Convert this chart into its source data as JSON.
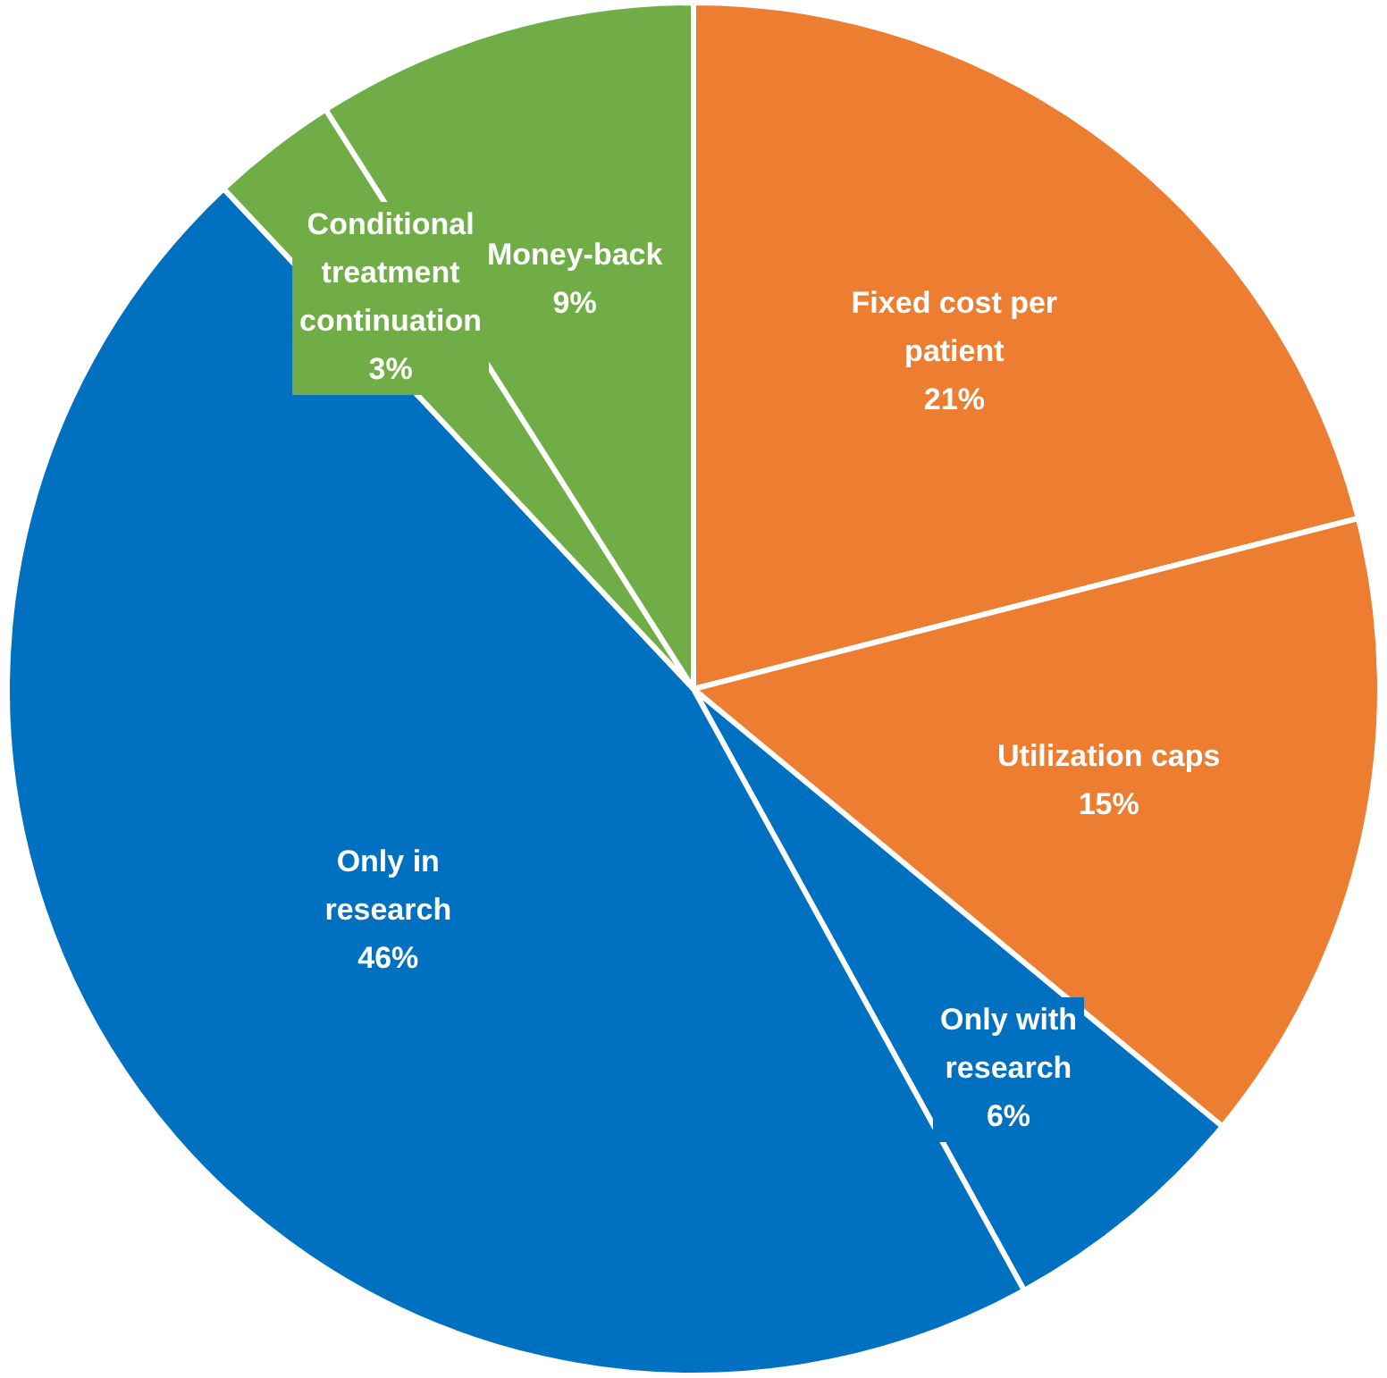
{
  "chart_data": {
    "type": "pie",
    "categories": [
      "Fixed cost per patient",
      "Utilization caps",
      "Only with research",
      "Only in research",
      "Conditional treatment continuation",
      "Money-back"
    ],
    "values": [
      21,
      15,
      6,
      46,
      3,
      9
    ],
    "colors": [
      "#ed7d31",
      "#ed7d31",
      "#0070c0",
      "#0070c0",
      "#70ad47",
      "#70ad47"
    ],
    "value_labels": [
      "21%",
      "15%",
      "6%",
      "46%",
      "3%",
      "9%"
    ],
    "legend": false
  }
}
